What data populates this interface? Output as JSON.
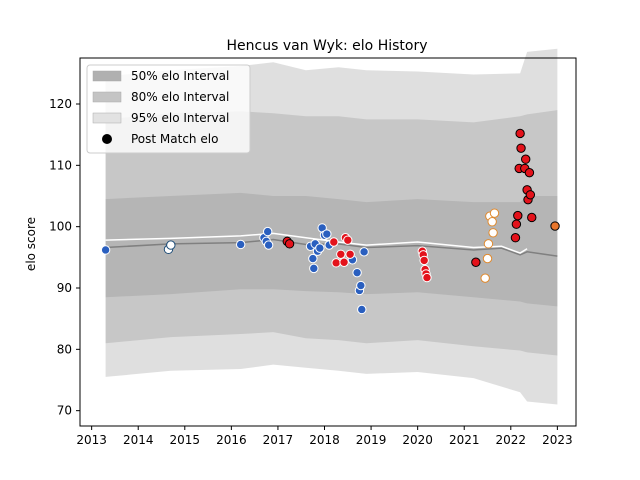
{
  "chart_data": {
    "type": "scatter",
    "title": "Hencus van Wyk: elo History",
    "xlabel": "",
    "ylabel": "elo score",
    "xlim": [
      2012.75,
      2023.4
    ],
    "ylim": [
      67.5,
      127.5
    ],
    "xticks": [
      2013,
      2014,
      2015,
      2016,
      2017,
      2018,
      2019,
      2020,
      2021,
      2022,
      2023
    ],
    "yticks": [
      70,
      80,
      90,
      100,
      110,
      120
    ],
    "legend": {
      "placement": "top-left",
      "entries": [
        "50% elo Interval",
        "80% elo Interval",
        "95% elo Interval",
        "Post Match elo"
      ]
    },
    "bands": {
      "x": [
        2013.3,
        2014.7,
        2016.2,
        2016.9,
        2017.6,
        2018.3,
        2018.9,
        2020.0,
        2021.2,
        2022.2,
        2022.35,
        2023.0
      ],
      "p95_upper": [
        124.5,
        125.5,
        126.2,
        126.8,
        125.5,
        126.0,
        125.5,
        125.3,
        124.8,
        125.0,
        128.5,
        129.0
      ],
      "p95_lower": [
        75.5,
        76.5,
        76.8,
        77.5,
        77.0,
        76.5,
        76.0,
        76.3,
        75.3,
        73.0,
        71.5,
        71.0
      ],
      "p80_upper": [
        117.5,
        118.5,
        118.8,
        118.5,
        118.0,
        118.0,
        117.5,
        117.5,
        117.0,
        118.0,
        118.3,
        119.0
      ],
      "p80_lower": [
        81.0,
        82.0,
        82.5,
        82.8,
        81.8,
        81.5,
        81.0,
        81.5,
        80.5,
        79.8,
        79.5,
        79.0
      ],
      "p50_upper": [
        104.5,
        105.0,
        105.5,
        105.0,
        105.0,
        104.5,
        104.0,
        104.5,
        104.0,
        104.0,
        105.0,
        105.0
      ],
      "p50_lower": [
        88.5,
        89.0,
        89.8,
        89.8,
        89.5,
        89.3,
        89.0,
        89.3,
        88.5,
        87.8,
        87.5,
        87.0
      ]
    },
    "mean_line": {
      "x": [
        2013.3,
        2014.7,
        2016.2,
        2016.9,
        2017.6,
        2018.3,
        2018.9,
        2020.0,
        2021.2,
        2021.8,
        2022.2,
        2022.35,
        2023.0
      ],
      "y": [
        96.6,
        97.2,
        97.4,
        97.9,
        97.1,
        97.2,
        96.6,
        96.9,
        96.2,
        96.5,
        95.4,
        95.9,
        95.2
      ]
    },
    "white_line": {
      "x": [
        2013.3,
        2014.7,
        2016.2,
        2016.9,
        2017.6,
        2018.3,
        2018.9,
        2020.0,
        2021.2,
        2021.8,
        2022.2,
        2022.35
      ],
      "y": [
        97.8,
        98.1,
        98.5,
        98.9,
        98.2,
        97.5,
        97.0,
        97.5,
        96.6,
        96.8,
        95.7,
        96.4
      ]
    },
    "series": [
      {
        "fill": "#ffffff",
        "edge": "#1f4e79",
        "points": [
          [
            2014.65,
            96.3
          ],
          [
            2014.7,
            97.0
          ]
        ]
      },
      {
        "fill": "#2a5fbf",
        "edge": "#ffffff",
        "points": [
          [
            2013.3,
            96.2
          ],
          [
            2016.2,
            97.1
          ],
          [
            2016.7,
            98.2
          ],
          [
            2016.75,
            97.6
          ],
          [
            2016.78,
            99.2
          ],
          [
            2016.8,
            97.0
          ],
          [
            2017.7,
            96.8
          ],
          [
            2017.75,
            94.8
          ],
          [
            2017.77,
            93.2
          ],
          [
            2017.8,
            97.2
          ],
          [
            2017.85,
            96.0
          ],
          [
            2017.9,
            96.5
          ],
          [
            2017.95,
            99.8
          ],
          [
            2018.0,
            98.6
          ],
          [
            2018.05,
            98.8
          ],
          [
            2018.1,
            97.0
          ],
          [
            2018.6,
            94.6
          ],
          [
            2018.7,
            92.5
          ],
          [
            2018.75,
            89.6
          ],
          [
            2018.78,
            90.4
          ],
          [
            2018.8,
            86.5
          ],
          [
            2018.85,
            95.9
          ]
        ]
      },
      {
        "fill": "#e3121b",
        "edge": "#ffffff",
        "points": [
          [
            2018.2,
            97.5
          ],
          [
            2018.25,
            94.1
          ],
          [
            2018.35,
            95.5
          ],
          [
            2018.42,
            94.2
          ],
          [
            2018.45,
            98.2
          ],
          [
            2018.5,
            97.8
          ],
          [
            2018.55,
            95.5
          ],
          [
            2020.1,
            96.0
          ],
          [
            2020.12,
            95.4
          ],
          [
            2020.14,
            94.5
          ],
          [
            2020.16,
            93.0
          ],
          [
            2020.18,
            92.3
          ],
          [
            2020.2,
            91.7
          ]
        ]
      },
      {
        "fill": "#ffffff",
        "edge": "#e08a2e",
        "points": [
          [
            2021.45,
            91.6
          ],
          [
            2021.5,
            94.8
          ],
          [
            2021.52,
            97.2
          ],
          [
            2021.55,
            101.7
          ],
          [
            2021.6,
            100.8
          ],
          [
            2021.62,
            99.0
          ],
          [
            2021.65,
            102.2
          ]
        ]
      },
      {
        "fill": "#e3121b",
        "edge": "#000000",
        "points": [
          [
            2017.2,
            97.6
          ],
          [
            2017.25,
            97.2
          ],
          [
            2021.25,
            94.2
          ],
          [
            2022.1,
            98.2
          ],
          [
            2022.12,
            100.4
          ],
          [
            2022.15,
            101.8
          ],
          [
            2022.18,
            109.5
          ],
          [
            2022.2,
            115.2
          ],
          [
            2022.22,
            112.8
          ],
          [
            2022.3,
            109.5
          ],
          [
            2022.32,
            111.0
          ],
          [
            2022.35,
            106.0
          ],
          [
            2022.37,
            104.4
          ],
          [
            2022.4,
            108.8
          ],
          [
            2022.42,
            105.2
          ],
          [
            2022.45,
            101.5
          ]
        ]
      },
      {
        "fill": "#e8762b",
        "edge": "#000000",
        "points": [
          [
            2022.95,
            100.1
          ]
        ]
      }
    ]
  }
}
